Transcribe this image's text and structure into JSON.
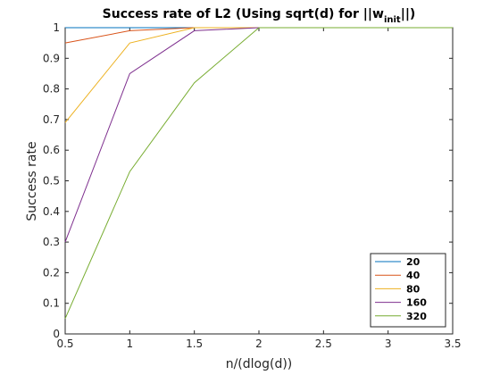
{
  "chart_data": {
    "type": "line",
    "title_main": "Success rate of L2 (Using sqrt(d) for ||w",
    "title_sub": "init",
    "title_end": "||)",
    "xlabel": "n/(dlog(d))",
    "ylabel": "Success rate",
    "xlim": [
      0.5,
      3.5
    ],
    "ylim": [
      0,
      1
    ],
    "xticks": [
      0.5,
      1,
      1.5,
      2,
      2.5,
      3,
      3.5
    ],
    "xtick_labels": [
      "0.5",
      "1",
      "1.5",
      "2",
      "2.5",
      "3",
      "3.5"
    ],
    "yticks": [
      0,
      0.1,
      0.2,
      0.3,
      0.4,
      0.5,
      0.6,
      0.7,
      0.8,
      0.9,
      1
    ],
    "ytick_labels": [
      "0",
      "0.1",
      "0.2",
      "0.3",
      "0.4",
      "0.5",
      "0.6",
      "0.7",
      "0.8",
      "0.9",
      "1"
    ],
    "grid": false,
    "legend_position": "bottom-right",
    "x": [
      0.5,
      1,
      1.5,
      2,
      2.5,
      3,
      3.5
    ],
    "series": [
      {
        "name": "20",
        "color": "#0072BD",
        "values": [
          1,
          1,
          1,
          1,
          1,
          1,
          1
        ]
      },
      {
        "name": "40",
        "color": "#D95319",
        "values": [
          0.95,
          0.99,
          1,
          1,
          1,
          1,
          1
        ]
      },
      {
        "name": "80",
        "color": "#EDB120",
        "values": [
          0.69,
          0.95,
          1,
          1,
          1,
          1,
          1
        ]
      },
      {
        "name": "160",
        "color": "#7E2F8E",
        "values": [
          0.3,
          0.85,
          0.99,
          1,
          1,
          1,
          1
        ]
      },
      {
        "name": "320",
        "color": "#77AC30",
        "values": [
          0.05,
          0.53,
          0.82,
          1,
          1,
          1,
          1
        ]
      }
    ]
  }
}
